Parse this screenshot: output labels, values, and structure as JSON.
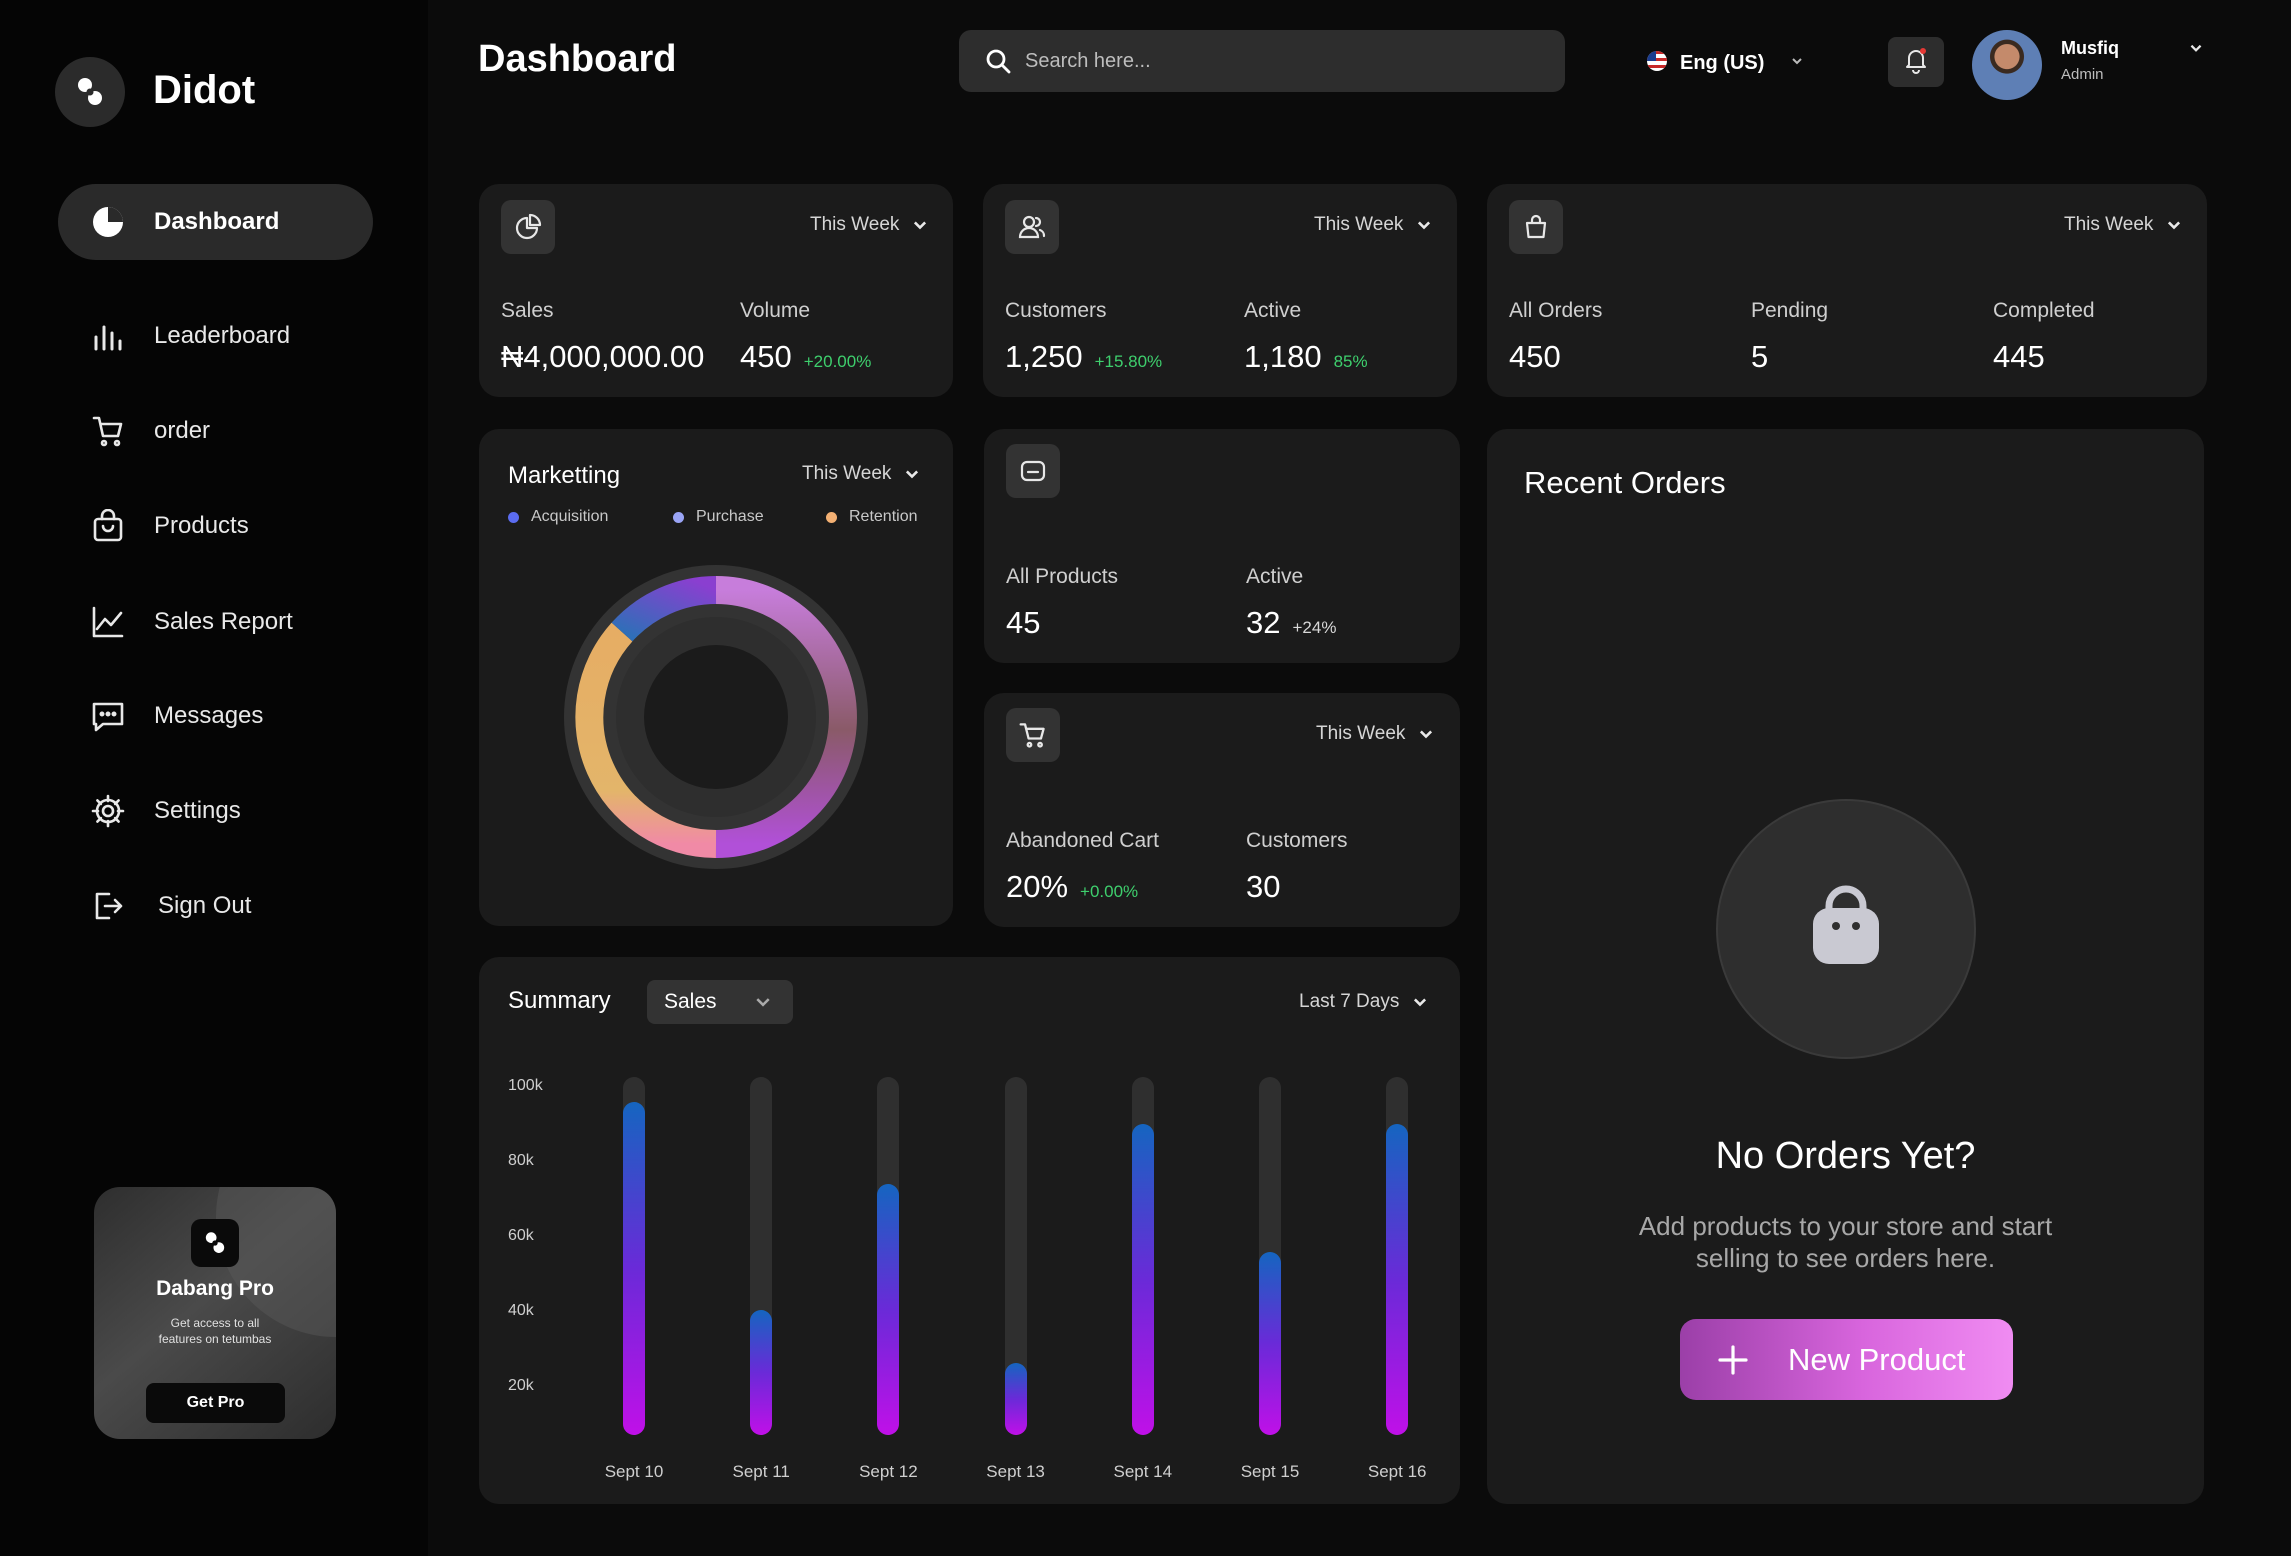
{
  "app": {
    "name": "Didot"
  },
  "sidebar": {
    "items": [
      {
        "label": "Dashboard"
      },
      {
        "label": "Leaderboard"
      },
      {
        "label": "order"
      },
      {
        "label": "Products"
      },
      {
        "label": "Sales Report"
      },
      {
        "label": "Messages"
      },
      {
        "label": "Settings"
      },
      {
        "label": "Sign Out"
      }
    ],
    "promo": {
      "title": "Dabang Pro",
      "line1": "Get access to all",
      "line2": "features on tetumbas",
      "button": "Get Pro"
    }
  },
  "header": {
    "title": "Dashboard",
    "search_placeholder": "Search here...",
    "language": "Eng (US)",
    "user": {
      "name": "Musfiq",
      "role": "Admin"
    }
  },
  "colors": {
    "accent": "#d865dd",
    "positive": "#3ecf6d",
    "card": "#1b1b1b",
    "acquisition": "#5b6cf0",
    "purchase": "#9aa4f5",
    "retention": "#f3b073"
  },
  "sales_card": {
    "period": "This Week",
    "sales_label": "Sales",
    "sales_value": "₦4,000,000.00",
    "volume_label": "Volume",
    "volume_value": "450",
    "volume_change": "+20.00%"
  },
  "customers_card": {
    "period": "This Week",
    "customers_label": "Customers",
    "customers_value": "1,250",
    "customers_change": "+15.80%",
    "active_label": "Active",
    "active_value": "1,180",
    "active_change": "85%"
  },
  "orders_card": {
    "period": "This Week",
    "all_label": "All Orders",
    "all_value": "450",
    "pending_label": "Pending",
    "pending_value": "5",
    "completed_label": "Completed",
    "completed_value": "445"
  },
  "marketing": {
    "title": "Marketting",
    "period": "This Week",
    "legend": [
      "Acquisition",
      "Purchase",
      "Retention"
    ]
  },
  "products_card": {
    "all_label": "All Products",
    "all_value": "45",
    "active_label": "Active",
    "active_value": "32",
    "active_change": "+24%"
  },
  "cart_card": {
    "period": "This Week",
    "abandoned_label": "Abandoned Cart",
    "abandoned_value": "20%",
    "abandoned_change": "+0.00%",
    "customers_label": "Customers",
    "customers_value": "30"
  },
  "summary": {
    "title": "Summary",
    "selector": "Sales",
    "period": "Last 7 Days"
  },
  "recent_orders": {
    "title": "Recent Orders",
    "empty_title": "No Orders Yet?",
    "empty_line1": "Add products to your store and start",
    "empty_line2": "selling to see orders here.",
    "button": "New Product"
  },
  "chart_data": {
    "type": "bar",
    "categories": [
      "Sept 10",
      "Sept 11",
      "Sept 12",
      "Sept 13",
      "Sept 14",
      "Sept 15",
      "Sept 16"
    ],
    "values": [
      93,
      35,
      70,
      20,
      87,
      51,
      87
    ],
    "ylim": [
      0,
      100
    ],
    "yticks": [
      "100k",
      "80k",
      "60k",
      "40k",
      "20k"
    ],
    "xlabel": "",
    "ylabel": ""
  }
}
